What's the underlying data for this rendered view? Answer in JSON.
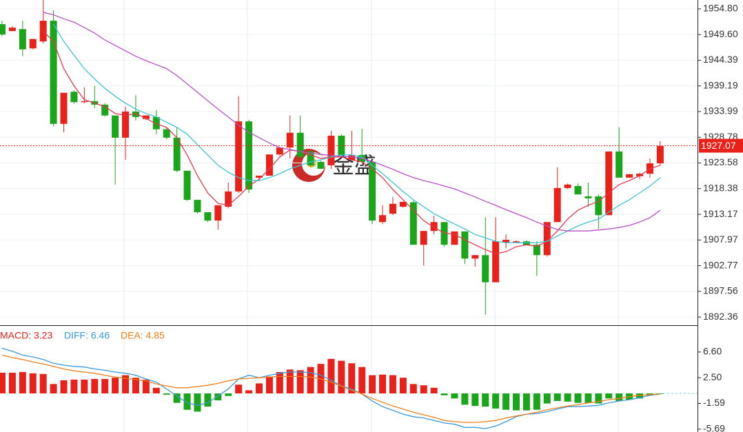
{
  "chart_data": [
    {
      "type": "candlestick",
      "ylim": [
        1890.7,
        1956.6
      ],
      "yticks": [
        {
          "value": 1954.8,
          "label": "1954.80"
        },
        {
          "value": 1949.6,
          "label": "1949.60"
        },
        1944.39,
        1939.19,
        1933.99,
        1928.78,
        1923.58,
        1918.38,
        1913.17,
        1907.97,
        1902.77,
        1897.56,
        1892.36
      ],
      "grid": true,
      "up_color": "#e8221a",
      "down_color": "#1aa51a",
      "open": [
        1951.7,
        1950.3,
        1950.7,
        1946.8,
        1948.2,
        1952.4,
        1931.5,
        1938.0,
        1935.9,
        1936.1,
        1935.4,
        1933.2,
        1928.7,
        1934.0,
        1932.5,
        1932.9,
        1930.4,
        1928.7,
        1922.0,
        1916.1,
        1913.6,
        1911.9,
        1914.7,
        1917.8,
        1932.0,
        1920.6,
        1921.0,
        1925.3,
        1926.7,
        1929.7,
        1925.9,
        1923.8,
        1923.1,
        1929.1,
        1924.2,
        1925.2,
        1923.8,
        1911.6,
        1913.3,
        1914.7,
        1915.6,
        1907.0,
        1909.8,
        1911.6,
        1907.0,
        1909.7,
        1904.2,
        1904.9,
        1899.4,
        1907.5,
        1907.5,
        1907.7,
        1907.0,
        1904.9,
        1911.6,
        1918.5,
        1918.9,
        1916.8,
        1916.8,
        1913.0,
        1925.9,
        1920.6,
        1920.9,
        1921.4,
        1923.5
      ],
      "high": [
        1952.4,
        1951.3,
        1952.4,
        1948.7,
        1956.6,
        1954.5,
        1937.8,
        1938.3,
        1938.9,
        1939.2,
        1935.7,
        1933.2,
        1935.0,
        1937.3,
        1933.2,
        1934.3,
        1930.8,
        1930.8,
        1922.0,
        1916.1,
        1913.6,
        1915.0,
        1919.6,
        1937.1,
        1932.3,
        1921.0,
        1925.3,
        1926.7,
        1933.2,
        1933.2,
        1926.2,
        1924.0,
        1930.1,
        1929.4,
        1930.1,
        1930.5,
        1923.8,
        1915.0,
        1916.7,
        1915.7,
        1915.9,
        1909.8,
        1912.9,
        1911.6,
        1909.7,
        1909.7,
        1904.9,
        1912.6,
        1912.6,
        1909.1,
        1907.9,
        1907.9,
        1907.7,
        1911.6,
        1922.7,
        1919.4,
        1919.4,
        1919.6,
        1917.2,
        1925.9,
        1930.8,
        1921.3,
        1921.6,
        1924.5,
        1928.0
      ],
      "low": [
        1949.3,
        1950.3,
        1945.2,
        1946.6,
        1947.8,
        1931.0,
        1929.8,
        1935.6,
        1935.7,
        1934.7,
        1933.0,
        1919.2,
        1924.2,
        1932.2,
        1932.3,
        1929.4,
        1928.4,
        1921.7,
        1915.9,
        1913.3,
        1911.6,
        1910.1,
        1914.4,
        1917.5,
        1917.5,
        1920.0,
        1921.0,
        1925.1,
        1924.5,
        1924.5,
        1922.9,
        1922.4,
        1922.4,
        1925.1,
        1924.2,
        1923.4,
        1911.2,
        1911.2,
        1913.0,
        1914.5,
        1907.0,
        1902.8,
        1909.1,
        1906.6,
        1907.0,
        1903.1,
        1902.6,
        1892.8,
        1899.4,
        1906.3,
        1907.4,
        1907.0,
        1900.7,
        1904.6,
        1911.6,
        1918.3,
        1917.2,
        1914.7,
        1910.2,
        1913.0,
        1920.6,
        1920.6,
        1920.3,
        1920.6,
        1923.1
      ],
      "close": [
        1949.6,
        1951.0,
        1946.6,
        1948.7,
        1952.4,
        1931.5,
        1937.8,
        1935.9,
        1936.1,
        1935.4,
        1933.2,
        1928.7,
        1934.0,
        1932.9,
        1933.2,
        1930.4,
        1928.7,
        1922.0,
        1916.1,
        1913.6,
        1911.9,
        1915.0,
        1917.8,
        1932.0,
        1918.2,
        1921.0,
        1925.3,
        1926.7,
        1929.7,
        1924.8,
        1923.1,
        1922.4,
        1929.1,
        1925.1,
        1925.2,
        1923.8,
        1911.9,
        1913.0,
        1915.3,
        1915.7,
        1907.0,
        1909.8,
        1911.6,
        1907.0,
        1909.7,
        1904.2,
        1904.9,
        1899.4,
        1907.7,
        1908.0,
        1907.7,
        1907.0,
        1904.9,
        1911.6,
        1918.5,
        1919.2,
        1917.2,
        1916.4,
        1913.0,
        1925.9,
        1920.6,
        1921.3,
        1921.4,
        1923.5,
        1927.0
      ],
      "lines": [
        {
          "color": "#e8384f",
          "values": [
            null,
            null,
            null,
            null,
            1950.3,
            1948.2,
            1942.7,
            1939.2,
            1936.4,
            1935.7,
            1935.0,
            1933.6,
            1933.2,
            1933.6,
            1932.6,
            1931.5,
            1930.8,
            1928.7,
            1925.2,
            1921.0,
            1917.5,
            1915.4,
            1915.0,
            1916.8,
            1918.9,
            1920.3,
            1922.4,
            1924.8,
            1926.2,
            1925.9,
            1925.2,
            1924.5,
            1924.8,
            1924.8,
            1924.2,
            1923.8,
            1922.4,
            1920.6,
            1918.2,
            1916.1,
            1914.0,
            1911.9,
            1910.5,
            1909.4,
            1909.1,
            1908.0,
            1907.0,
            1906.0,
            1905.2,
            1905.6,
            1906.6,
            1907.0,
            1906.7,
            1907.7,
            1909.8,
            1912.2,
            1914.0,
            1915.0,
            1915.8,
            1917.5,
            1919.2,
            1920.0,
            1921.0,
            1922.4,
            1923.1
          ]
        },
        {
          "color": "#3cc3d8",
          "values": [
            null,
            null,
            null,
            null,
            null,
            1951.7,
            1948.2,
            1945.4,
            1942.7,
            1940.6,
            1938.7,
            1937.1,
            1935.7,
            1934.5,
            1933.6,
            1932.9,
            1931.8,
            1930.8,
            1929.4,
            1927.3,
            1925.2,
            1923.1,
            1921.7,
            1920.6,
            1920.0,
            1920.0,
            1920.6,
            1921.4,
            1922.4,
            1923.1,
            1923.8,
            1924.2,
            1924.8,
            1925.2,
            1925.2,
            1924.8,
            1923.1,
            1921.4,
            1919.6,
            1917.8,
            1916.1,
            1914.7,
            1913.3,
            1912.2,
            1911.2,
            1910.2,
            1909.1,
            1908.4,
            1907.7,
            1907.4,
            1907.4,
            1907.4,
            1907.4,
            1907.7,
            1908.8,
            1909.8,
            1910.8,
            1911.6,
            1912.2,
            1913.6,
            1915.0,
            1916.1,
            1917.5,
            1918.9,
            1920.6
          ]
        },
        {
          "color": "#b94fc8",
          "values": [
            null,
            null,
            null,
            null,
            1954.1,
            1953.6,
            1952.8,
            1952.1,
            1951.0,
            1949.9,
            1948.5,
            1947.4,
            1946.3,
            1945.2,
            1944.3,
            1943.5,
            1942.7,
            1941.3,
            1939.6,
            1937.9,
            1936.2,
            1934.5,
            1932.9,
            1931.2,
            1929.8,
            1928.7,
            1927.6,
            1926.7,
            1926.3,
            1925.9,
            1925.6,
            1925.3,
            1925.1,
            1924.9,
            1924.8,
            1924.5,
            1923.9,
            1923.1,
            1922.3,
            1921.4,
            1920.6,
            1920.0,
            1919.5,
            1918.9,
            1918.3,
            1917.5,
            1916.7,
            1915.8,
            1915.0,
            1914.1,
            1913.3,
            1912.5,
            1911.6,
            1910.8,
            1910.1,
            1909.8,
            1909.8,
            1909.8,
            1910.0,
            1910.2,
            1910.5,
            1910.9,
            1911.6,
            1912.5,
            1914.0
          ]
        }
      ],
      "last_price": 1927.07,
      "watermark": "金盛"
    },
    {
      "type": "macd",
      "ylim": [
        -6.14,
        10.75
      ],
      "yticks": [
        {
          "value": 6.6,
          "label": "6.60"
        },
        {
          "value": 2.5,
          "label": "2.50"
        },
        -1.59,
        -5.69
      ],
      "positive_color": "#e8221a",
      "negative_color": "#1aa51a",
      "series": [
        {
          "name": "MACD: 3.23",
          "color": "#e8221a",
          "values": [
            3.3,
            3.3,
            3.4,
            3.2,
            3.1,
            1.5,
            2.1,
            2.2,
            2.2,
            2.3,
            2.3,
            2.5,
            2.9,
            2.5,
            2.2,
            0.9,
            -0.2,
            -1.5,
            -2.6,
            -2.9,
            -2.1,
            -1.1,
            -0.4,
            1.4,
            0.5,
            1.6,
            2.7,
            3.4,
            3.8,
            3.7,
            4.2,
            4.7,
            5.5,
            5.2,
            4.8,
            4.2,
            2.9,
            3.0,
            2.9,
            2.5,
            1.5,
            1.3,
            0.9,
            -0.3,
            -0.8,
            -1.8,
            -2.0,
            -2.1,
            -2.4,
            -2.6,
            -2.7,
            -2.7,
            -2.6,
            -1.6,
            -1.2,
            -1.3,
            -1.5,
            -1.5,
            -1.6,
            -0.8,
            -1.2,
            -1.0,
            -0.8,
            -0.3,
            -0.1
          ]
        },
        {
          "name": "DIFF: 6.46",
          "color": "#3a9ad9",
          "values": [
            7.2,
            6.7,
            6.1,
            5.8,
            5.4,
            4.8,
            4.5,
            4.3,
            4.2,
            3.9,
            3.7,
            3.4,
            3.2,
            2.9,
            2.3,
            1.8,
            0.7,
            -0.4,
            -1.5,
            -1.9,
            -1.5,
            -0.4,
            0.7,
            2.3,
            2.9,
            2.5,
            2.9,
            3.2,
            3.4,
            3.4,
            3.3,
            2.9,
            2.1,
            1.2,
            0.7,
            -0.1,
            -1.2,
            -2.1,
            -2.7,
            -3.3,
            -3.7,
            -3.9,
            -4.3,
            -4.7,
            -4.9,
            -5.4,
            -5.4,
            -5.6,
            -5.2,
            -4.5,
            -3.7,
            -3.3,
            -3.2,
            -2.9,
            -2.5,
            -2.1,
            -2.1,
            -2.0,
            -1.9,
            -1.5,
            -1.2,
            -1.0,
            -0.7,
            -0.3,
            -0.1
          ]
        },
        {
          "name": "DEA: 4.85",
          "color": "#f07d1a",
          "values": [
            6.1,
            5.7,
            5.4,
            5.0,
            4.7,
            4.3,
            3.9,
            3.6,
            3.4,
            3.2,
            2.9,
            2.6,
            2.4,
            2.2,
            2.0,
            1.5,
            1.2,
            0.9,
            0.9,
            1.1,
            1.3,
            1.6,
            2.0,
            2.3,
            2.4,
            2.5,
            2.6,
            2.7,
            2.7,
            2.7,
            2.6,
            2.3,
            1.8,
            1.2,
            0.5,
            -0.1,
            -0.8,
            -1.4,
            -2.0,
            -2.5,
            -3.0,
            -3.4,
            -3.8,
            -4.3,
            -4.5,
            -4.6,
            -4.6,
            -4.5,
            -4.3,
            -3.9,
            -3.6,
            -3.3,
            -3.0,
            -2.6,
            -2.3,
            -2.0,
            -1.8,
            -1.5,
            -1.3,
            -1.0,
            -0.8,
            -0.5,
            -0.3,
            -0.2,
            -0.1
          ]
        }
      ]
    }
  ]
}
